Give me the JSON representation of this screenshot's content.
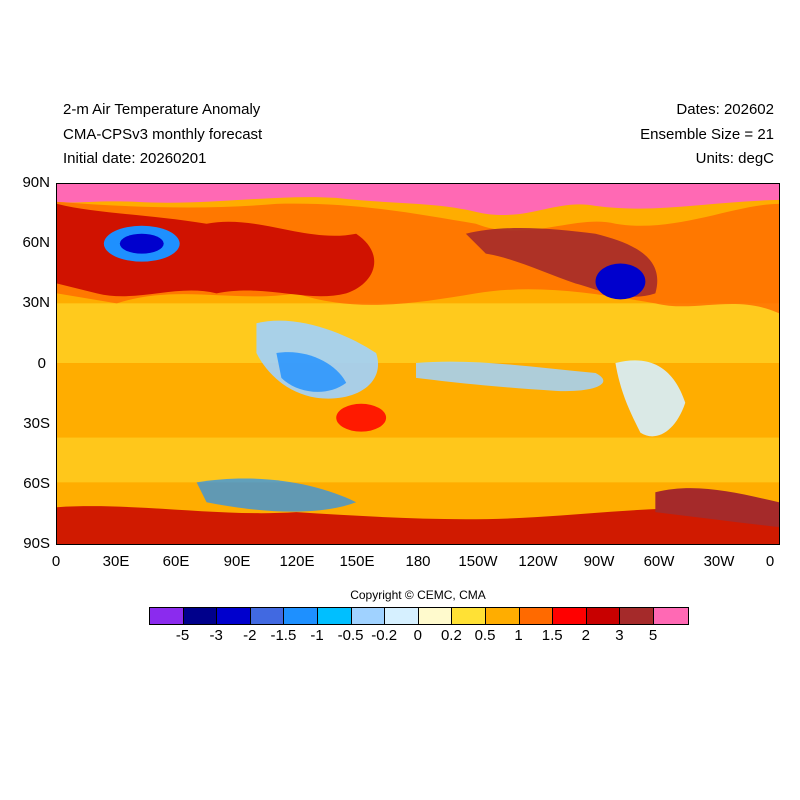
{
  "header": {
    "title": "2-m Air Temperature Anomaly",
    "model": "CMA-CPSv3 monthly forecast",
    "initial_date": "Initial date: 20260201",
    "dates": "Dates: 202602",
    "ensemble": "Ensemble Size = 21",
    "units": "Units: degC"
  },
  "axes": {
    "lat_labels": [
      "90N",
      "60N",
      "30N",
      "0",
      "30S",
      "60S",
      "90S"
    ],
    "lon_labels": [
      "0",
      "30E",
      "60E",
      "90E",
      "120E",
      "150E",
      "180",
      "150W",
      "120W",
      "90W",
      "60W",
      "30W",
      "0"
    ]
  },
  "copyright": "Copyright © CEMC, CMA",
  "colorbar": {
    "colors": [
      "#8b2bee",
      "#00008b",
      "#0000cd",
      "#4169e1",
      "#1e90ff",
      "#00bfff",
      "#a0d2ff",
      "#d6f0ff",
      "#fffacd",
      "#ffe135",
      "#ffad00",
      "#ff6a00",
      "#ff0000",
      "#c80000",
      "#a52a2a",
      "#ff69b4"
    ],
    "labels": [
      "-5",
      "-3",
      "-2",
      "-1.5",
      "-1",
      "-0.5",
      "-0.2",
      "0",
      "0.2",
      "0.5",
      "1",
      "1.5",
      "2",
      "3",
      "5"
    ]
  },
  "legend_colors": {
    "very_warm": "#ff69b4",
    "warm_dark": "#a52a2a",
    "warm": "#c80000",
    "red": "#ff0000",
    "orange": "#ff6a00",
    "amber": "#ffad00",
    "yellow": "#ffe135",
    "pale": "#fffacd",
    "cool_pale": "#d6f0ff",
    "cool_light": "#a0d2ff",
    "cool": "#00bfff",
    "blue": "#1e90ff",
    "deep_blue": "#0000cd"
  }
}
